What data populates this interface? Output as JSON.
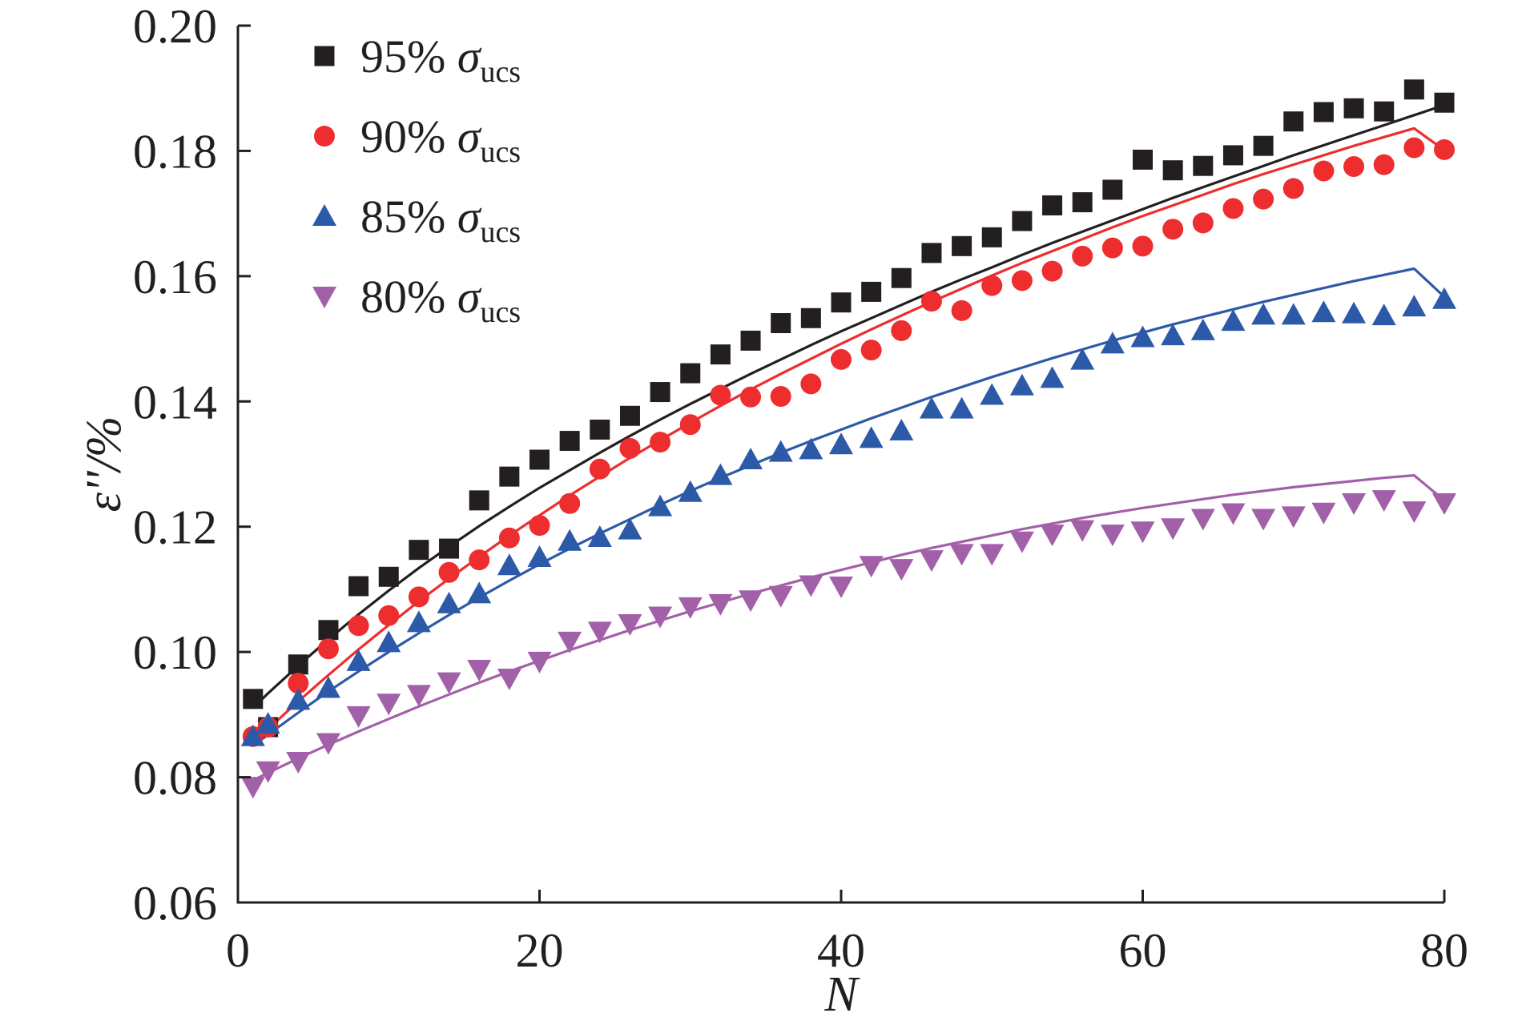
{
  "chart_data": {
    "type": "scatter",
    "xlabel": "N",
    "ylabel": "ε''/%",
    "xlim": [
      0,
      80
    ],
    "ylim": [
      0.06,
      0.2
    ],
    "x_ticks": [
      0,
      20,
      40,
      60,
      80
    ],
    "y_ticks": [
      0.06,
      0.08,
      0.1,
      0.12,
      0.14,
      0.16,
      0.18,
      0.2
    ],
    "x_tick_labels": [
      "0",
      "20",
      "40",
      "60",
      "80"
    ],
    "y_tick_labels": [
      "0.06",
      "0.08",
      "0.10",
      "0.12",
      "0.14",
      "0.16",
      "0.18",
      "0.20"
    ],
    "grid": false,
    "legend_position": "top-left",
    "x": [
      1,
      2,
      4,
      6,
      8,
      10,
      12,
      14,
      16,
      18,
      20,
      22,
      24,
      26,
      28,
      30,
      32,
      34,
      36,
      38,
      40,
      42,
      44,
      46,
      48,
      50,
      52,
      54,
      56,
      58,
      60,
      62,
      64,
      66,
      68,
      70,
      72,
      74,
      76,
      78,
      80
    ],
    "series": [
      {
        "name_prefix": "95% ",
        "name_symbol": "σ",
        "name_subscript": "ucs",
        "marker": "square",
        "color": "#231f20",
        "values": [
          0.0925,
          0.088,
          0.098,
          0.1035,
          0.1105,
          0.112,
          0.1163,
          0.1165,
          0.1242,
          0.128,
          0.1307,
          0.1337,
          0.1355,
          0.1377,
          0.1415,
          0.1445,
          0.1475,
          0.1497,
          0.1525,
          0.1533,
          0.1558,
          0.1575,
          0.1597,
          0.1637,
          0.1648,
          0.1662,
          0.1688,
          0.1713,
          0.1718,
          0.1738,
          0.1786,
          0.1769,
          0.1776,
          0.1793,
          0.1808,
          0.1847,
          0.1862,
          0.1868,
          0.1863,
          0.1898,
          0.1877
        ],
        "fit": [
          0.091,
          0.0934,
          0.0978,
          0.102,
          0.106,
          0.1098,
          0.1134,
          0.1168,
          0.1201,
          0.1232,
          0.1262,
          0.129,
          0.1318,
          0.1345,
          0.1371,
          0.1396,
          0.142,
          0.1444,
          0.1467,
          0.149,
          0.1512,
          0.1533,
          0.1554,
          0.1575,
          0.1595,
          0.1614,
          0.1634,
          0.1653,
          0.1671,
          0.1689,
          0.1707,
          0.1725,
          0.1742,
          0.1759,
          0.1776,
          0.1793,
          0.1809,
          0.1825,
          0.1841,
          0.1857,
          0.1873
        ]
      },
      {
        "name_prefix": "90% ",
        "name_symbol": "σ",
        "name_subscript": "ucs",
        "marker": "circle",
        "color": "#ed2d2e",
        "values": [
          0.0865,
          0.088,
          0.095,
          0.1005,
          0.1042,
          0.1058,
          0.1088,
          0.1127,
          0.1147,
          0.1182,
          0.1202,
          0.1237,
          0.1292,
          0.1325,
          0.1335,
          0.1363,
          0.141,
          0.1407,
          0.1408,
          0.1428,
          0.1467,
          0.1482,
          0.1513,
          0.156,
          0.1545,
          0.1585,
          0.1593,
          0.1608,
          0.1632,
          0.1645,
          0.1648,
          0.1675,
          0.1685,
          0.1708,
          0.1723,
          0.174,
          0.1768,
          0.1775,
          0.1778,
          0.1805,
          0.1802
        ],
        "fit": [
          0.0855,
          0.0877,
          0.0921,
          0.0963,
          0.1004,
          0.1043,
          0.1081,
          0.1117,
          0.1152,
          0.1186,
          0.1218,
          0.125,
          0.128,
          0.131,
          0.1338,
          0.1366,
          0.1393,
          0.1419,
          0.1444,
          0.1468,
          0.1492,
          0.1515,
          0.1537,
          0.1559,
          0.158,
          0.1601,
          0.1621,
          0.164,
          0.1659,
          0.1678,
          0.1696,
          0.1713,
          0.173,
          0.1747,
          0.1763,
          0.1778,
          0.1793,
          0.1808,
          0.1822,
          0.1836,
          0.1801
        ]
      },
      {
        "name_prefix": "85% ",
        "name_symbol": "σ",
        "name_subscript": "ucs",
        "marker": "triangle-up",
        "color": "#2c5aa8",
        "values": [
          0.0865,
          0.0885,
          0.0923,
          0.0942,
          0.0985,
          0.1015,
          0.1047,
          0.1077,
          0.1093,
          0.1138,
          0.1151,
          0.1177,
          0.1183,
          0.1195,
          0.1232,
          0.1255,
          0.1282,
          0.1307,
          0.1319,
          0.1323,
          0.1331,
          0.1341,
          0.1353,
          0.1388,
          0.1388,
          0.141,
          0.1425,
          0.1437,
          0.1466,
          0.1492,
          0.1502,
          0.1505,
          0.1513,
          0.1528,
          0.1538,
          0.1538,
          0.1542,
          0.154,
          0.1537,
          0.1551,
          0.1563
        ],
        "fit": [
          0.085,
          0.0868,
          0.0903,
          0.0937,
          0.0969,
          0.1,
          0.103,
          0.1059,
          0.1087,
          0.1114,
          0.114,
          0.1165,
          0.1189,
          0.1212,
          0.1235,
          0.1257,
          0.1278,
          0.1298,
          0.1318,
          0.1337,
          0.1355,
          0.1373,
          0.139,
          0.1407,
          0.1423,
          0.1439,
          0.1454,
          0.1469,
          0.1483,
          0.1497,
          0.151,
          0.1523,
          0.1535,
          0.1547,
          0.1559,
          0.157,
          0.1581,
          0.1592,
          0.1602,
          0.1612,
          0.1567
        ]
      },
      {
        "name_prefix": "80% ",
        "name_symbol": "σ",
        "name_subscript": "ucs",
        "marker": "triangle-down",
        "color": "#a260a9",
        "values": [
          0.0785,
          0.081,
          0.0825,
          0.0855,
          0.0898,
          0.0918,
          0.0932,
          0.0952,
          0.0972,
          0.0958,
          0.0985,
          0.1017,
          0.1033,
          0.1045,
          0.1057,
          0.1072,
          0.1077,
          0.1083,
          0.109,
          0.1107,
          0.1105,
          0.1138,
          0.1133,
          0.1147,
          0.1157,
          0.1157,
          0.1177,
          0.1188,
          0.1195,
          0.1188,
          0.1193,
          0.1198,
          0.1213,
          0.1222,
          0.1213,
          0.1217,
          0.1223,
          0.1238,
          0.1243,
          0.1225,
          0.1238
        ],
        "fit": [
          0.0795,
          0.0807,
          0.083,
          0.0852,
          0.0873,
          0.0893,
          0.0913,
          0.0932,
          0.0951,
          0.0969,
          0.0986,
          0.1003,
          0.1019,
          0.1035,
          0.105,
          0.1065,
          0.1079,
          0.1093,
          0.1106,
          0.1119,
          0.1131,
          0.1143,
          0.1155,
          0.1166,
          0.1176,
          0.1186,
          0.1196,
          0.1205,
          0.1214,
          0.1222,
          0.123,
          0.1237,
          0.1244,
          0.1251,
          0.1257,
          0.1263,
          0.1268,
          0.1273,
          0.1278,
          0.1282,
          0.1242
        ]
      }
    ]
  }
}
